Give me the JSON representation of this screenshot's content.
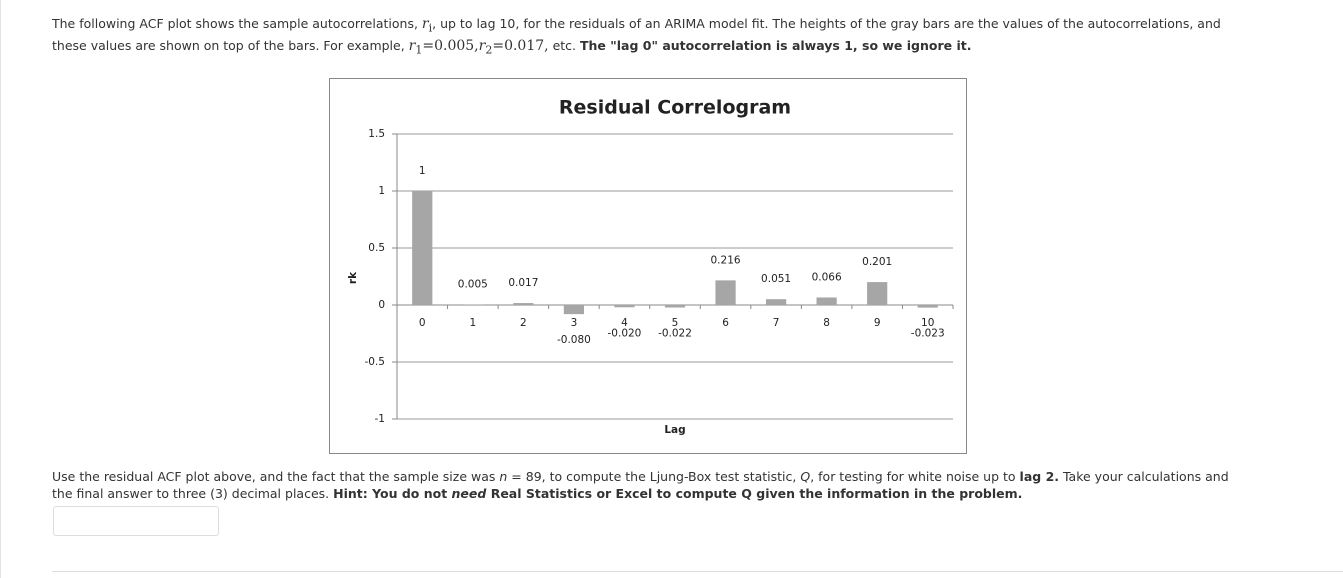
{
  "intro": [
    "The following ACF plot shows the sample autocorrelations, ",
    "r",
    "i",
    ", up to lag 10, for the residuals of an ARIMA model fit. The heights of the gray bars are the values of the autocorrelations, and these values are shown on top of the bars. For example, ",
    "r",
    "1",
    "=0.005,",
    "r",
    "2",
    "=0.017,",
    " etc. ",
    "The \"lag 0\" autocorrelation is always 1, so we ignore it."
  ],
  "chart_data": {
    "type": "bar",
    "title": "Residual Correlogram",
    "x_label": "Lag",
    "y_label": "rk",
    "categories": [
      "0",
      "1",
      "2",
      "3",
      "4",
      "5",
      "6",
      "7",
      "8",
      "9",
      "10"
    ],
    "values": [
      1,
      0.005,
      0.017,
      -0.08,
      -0.02,
      -0.022,
      0.216,
      0.051,
      0.066,
      0.201,
      -0.023
    ],
    "value_labels": [
      "1",
      "0.005",
      "0.017",
      "-0.080",
      "-0.020",
      "-0.022",
      "0.216",
      "0.051",
      "0.066",
      "0.201",
      "-0.023"
    ],
    "color": "#a6a6a6",
    "ylim": [
      -1,
      1.5
    ],
    "yticks": [
      -1,
      -0.5,
      0,
      0.5,
      1,
      1.5
    ],
    "grid": true
  },
  "question": [
    "Use the residual ACF plot above, and the fact that the sample size was ",
    "n",
    " = 89, to compute the Ljung-Box test statistic, ",
    "Q",
    ", for testing for white noise up to ",
    "lag 2.",
    " Take your calculations and the final answer to three (3) decimal places. ",
    "Hint: You do not ",
    "need",
    " Real Statistics or Excel to compute Q given the information in the problem."
  ]
}
